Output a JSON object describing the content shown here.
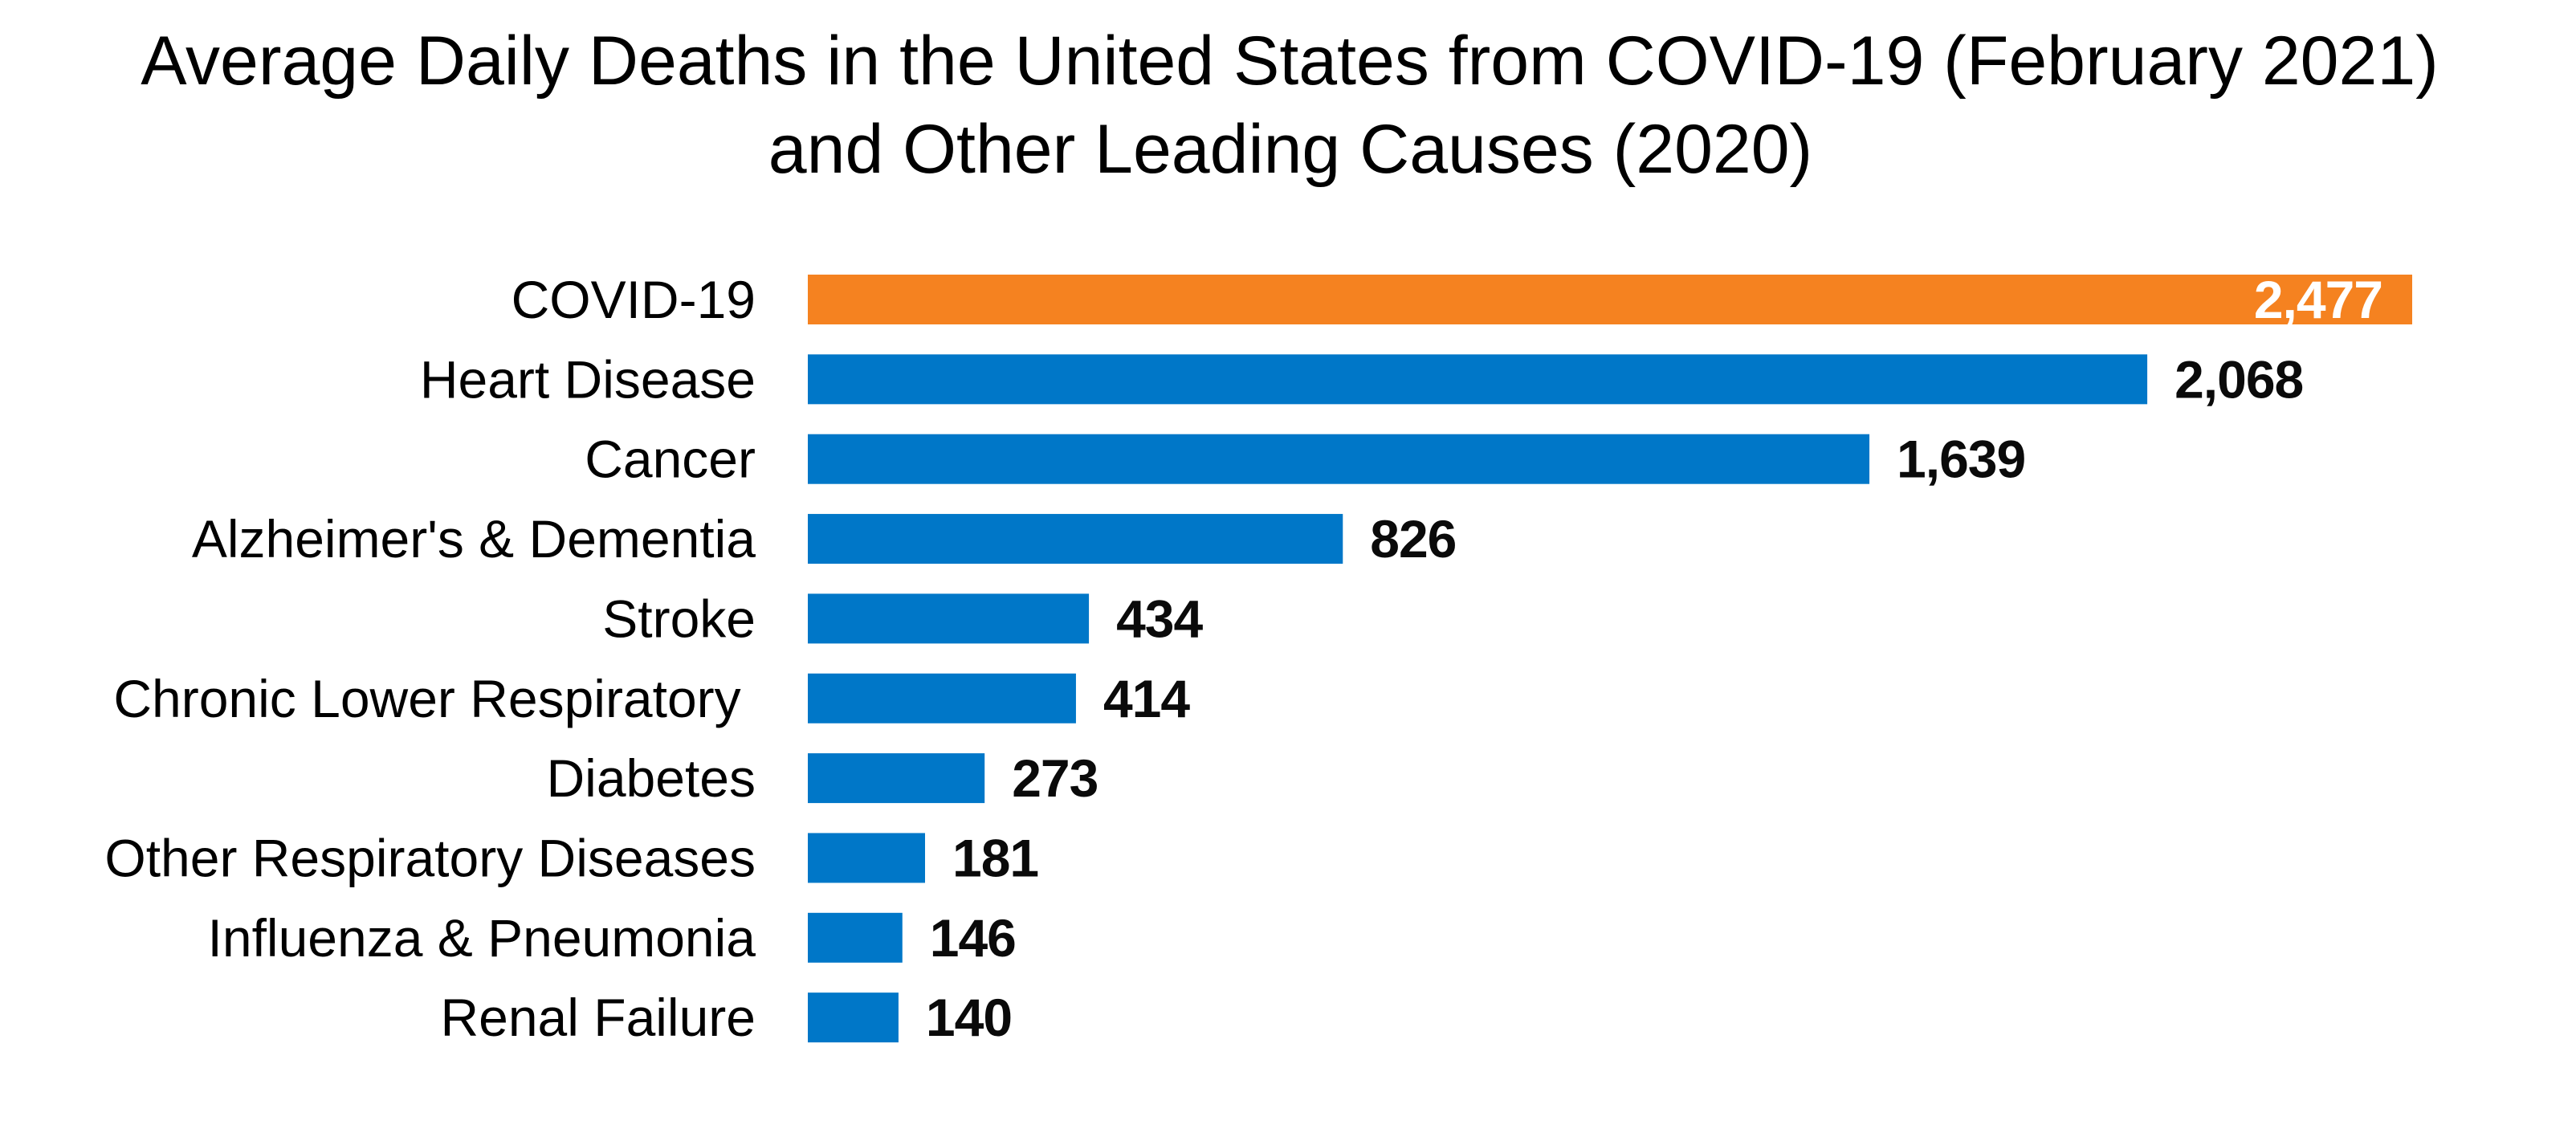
{
  "chart_data": {
    "type": "bar",
    "orientation": "horizontal",
    "title": "Average Daily Deaths in the United States from COVID-19 (February 2021) and Other Leading Causes (2020)",
    "title_lines": [
      "Average Daily Deaths in the United States from COVID-19 (February 2021)",
      "and Other Leading Causes (2020)"
    ],
    "xlabel": "",
    "ylabel": "",
    "grid": false,
    "legend": "none",
    "xlim": [
      0,
      2477
    ],
    "categories": [
      "COVID-19",
      "Heart Disease",
      "Cancer",
      "Alzheimer's & Dementia",
      "Stroke",
      "Chronic Lower Respiratory ",
      "Diabetes",
      "Other Respiratory Diseases",
      "Influenza & Pneumonia",
      "Renal Failure"
    ],
    "values": [
      2477,
      2068,
      1639,
      826,
      434,
      414,
      273,
      181,
      146,
      140
    ],
    "value_labels": [
      "2,477",
      "2,068",
      "1,639",
      "826",
      "434",
      "414",
      "273",
      "181",
      "146",
      "140"
    ],
    "highlight_index": 0,
    "colors": {
      "highlight": "#F58220",
      "default": "#0077C8",
      "highlight_label": "#FFFFFF",
      "label": "#0A0A0A"
    }
  }
}
